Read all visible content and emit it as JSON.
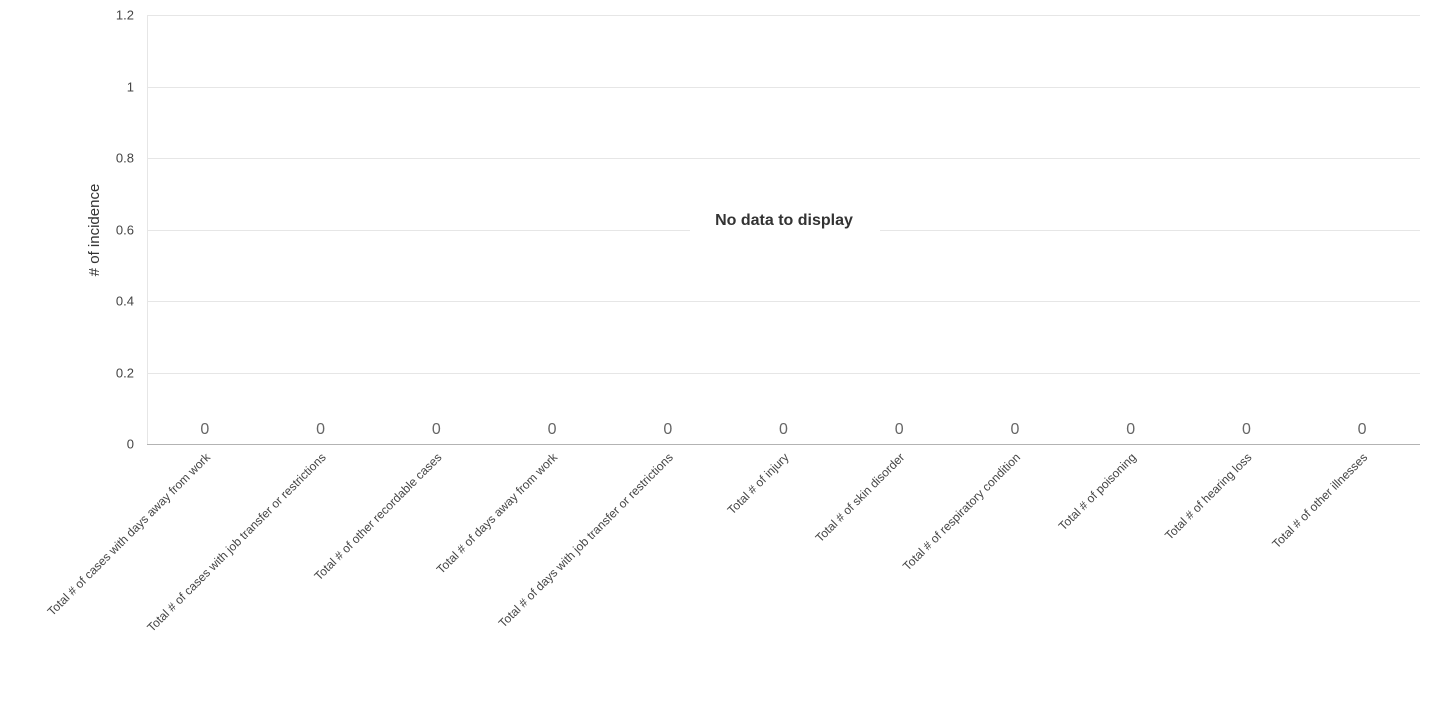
{
  "chart_data": {
    "type": "bar",
    "title": "",
    "xlabel": "",
    "ylabel": "# of incidence",
    "ylim": [
      0,
      1.2
    ],
    "y_ticks": [
      "0",
      "0.2",
      "0.4",
      "0.6",
      "0.8",
      "1",
      "1.2"
    ],
    "y_tick_values": [
      0,
      0.2,
      0.4,
      0.6,
      0.8,
      1,
      1.2
    ],
    "grid": true,
    "legend": "none",
    "no_data_message": "No data to display",
    "categories": [
      "Total # of cases with days away from work",
      "Total # of cases with job transfer or restrictions",
      "Total # of other recordable cases",
      "Total # of days away from work",
      "Total # of days with job transfer or restrictions",
      "Total # of injury",
      "Total # of skin disorder",
      "Total # of respiratory condition",
      "Total # of poisoning",
      "Total # of hearing loss",
      "Total # of other illnesses"
    ],
    "values": [
      0,
      0,
      0,
      0,
      0,
      0,
      0,
      0,
      0,
      0,
      0
    ],
    "data_labels": [
      "0",
      "0",
      "0",
      "0",
      "0",
      "0",
      "0",
      "0",
      "0",
      "0",
      "0"
    ]
  },
  "colors": {
    "grid": "#e6e6e6",
    "axis": "#b3b3b3",
    "text": "#444444",
    "value_label": "#666666"
  }
}
